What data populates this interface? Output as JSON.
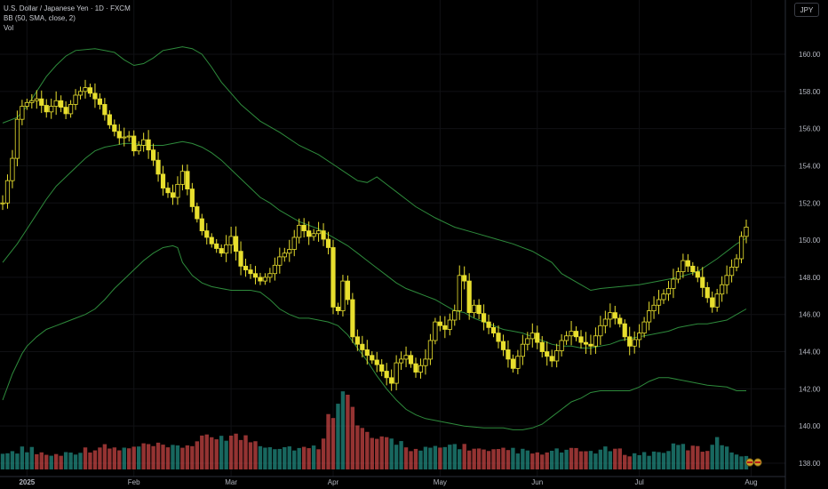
{
  "legend": {
    "symbol_line": "U.S. Dollar / Japanese Yen · 1D · FXCM",
    "bb_line": "BB (50, SMA, close, 2)",
    "vol_line": "Vol"
  },
  "currency_button": "JPY",
  "colors": {
    "background": "#000000",
    "candle_up": "#e8df2e",
    "candle_down": "#e8df2e",
    "bollinger": "#2e8b3c",
    "volume_up": "#26a69a",
    "volume_down": "#ef5350",
    "axis_text": "#b2b5be"
  },
  "chart_data": {
    "type": "candlestick",
    "y_axis": {
      "ticks": [
        138,
        140,
        142,
        144,
        146,
        148,
        150,
        152,
        154,
        156,
        158,
        160
      ],
      "range": [
        137.2,
        162.8
      ],
      "position": "right"
    },
    "x_axis": {
      "labels": [
        {
          "text": "2025",
          "day": 0
        },
        {
          "text": "Feb",
          "day": 22
        },
        {
          "text": "Mar",
          "day": 42
        },
        {
          "text": "Apr",
          "day": 63
        },
        {
          "text": "May",
          "day": 85
        },
        {
          "text": "Jun",
          "day": 105
        },
        {
          "text": "Jul",
          "day": 126
        },
        {
          "text": "Aug",
          "day": 149
        }
      ]
    },
    "price_keypoints": [
      [
        -5,
        152.0
      ],
      [
        -4,
        153.2
      ],
      [
        -3,
        154.4
      ],
      [
        -2,
        156.5
      ],
      [
        -1,
        157.2
      ],
      [
        0,
        157.4
      ],
      [
        2,
        157.6
      ],
      [
        4,
        156.9
      ],
      [
        6,
        157.5
      ],
      [
        8,
        156.8
      ],
      [
        10,
        157.8
      ],
      [
        12,
        158.2
      ],
      [
        15,
        157.3
      ],
      [
        17,
        156.2
      ],
      [
        19,
        155.5
      ],
      [
        21,
        155.6
      ],
      [
        22,
        154.8
      ],
      [
        24,
        155.4
      ],
      [
        26,
        154.3
      ],
      [
        28,
        152.8
      ],
      [
        30,
        152.3
      ],
      [
        32,
        153.7
      ],
      [
        34,
        151.8
      ],
      [
        36,
        150.5
      ],
      [
        38,
        149.8
      ],
      [
        40,
        149.3
      ],
      [
        42,
        150.2
      ],
      [
        44,
        148.6
      ],
      [
        46,
        148.2
      ],
      [
        48,
        147.8
      ],
      [
        50,
        148.2
      ],
      [
        52,
        149.1
      ],
      [
        54,
        149.5
      ],
      [
        56,
        150.8
      ],
      [
        58,
        150.2
      ],
      [
        60,
        150.5
      ],
      [
        62,
        149.6
      ],
      [
        63,
        146.4
      ],
      [
        64,
        146.2
      ],
      [
        65,
        147.8
      ],
      [
        66,
        146.8
      ],
      [
        67,
        144.8
      ],
      [
        68,
        144.4
      ],
      [
        70,
        143.8
      ],
      [
        72,
        143.3
      ],
      [
        74,
        142.6
      ],
      [
        75,
        142.3
      ],
      [
        76,
        143.4
      ],
      [
        78,
        143.8
      ],
      [
        80,
        142.9
      ],
      [
        82,
        143.6
      ],
      [
        84,
        145.6
      ],
      [
        86,
        145.2
      ],
      [
        88,
        146.2
      ],
      [
        89,
        148.1
      ],
      [
        90,
        147.8
      ],
      [
        91,
        146.1
      ],
      [
        92,
        146.5
      ],
      [
        94,
        145.6
      ],
      [
        96,
        145.0
      ],
      [
        98,
        144.1
      ],
      [
        100,
        143.1
      ],
      [
        102,
        144.4
      ],
      [
        104,
        145.0
      ],
      [
        106,
        144.0
      ],
      [
        108,
        143.5
      ],
      [
        110,
        144.6
      ],
      [
        112,
        145.1
      ],
      [
        114,
        144.5
      ],
      [
        116,
        144.3
      ],
      [
        118,
        145.4
      ],
      [
        120,
        146.1
      ],
      [
        122,
        145.5
      ],
      [
        123,
        144.8
      ],
      [
        124,
        144.3
      ],
      [
        126,
        145.0
      ],
      [
        128,
        146.2
      ],
      [
        130,
        146.8
      ],
      [
        132,
        147.4
      ],
      [
        133,
        147.9
      ],
      [
        134,
        148.3
      ],
      [
        135,
        148.9
      ],
      [
        136,
        148.6
      ],
      [
        138,
        148.0
      ],
      [
        140,
        146.9
      ],
      [
        141,
        146.4
      ],
      [
        142,
        147.1
      ],
      [
        144,
        148.1
      ],
      [
        146,
        149.0
      ],
      [
        147,
        150.2
      ],
      [
        148,
        150.7
      ]
    ],
    "bollinger": {
      "upper": [
        [
          -5,
          156.3
        ],
        [
          -2,
          156.6
        ],
        [
          0,
          157.2
        ],
        [
          2,
          158.0
        ],
        [
          4,
          158.8
        ],
        [
          6,
          159.4
        ],
        [
          8,
          159.9
        ],
        [
          10,
          160.2
        ],
        [
          14,
          160.3
        ],
        [
          16,
          160.2
        ],
        [
          18,
          160.1
        ],
        [
          20,
          159.7
        ],
        [
          22,
          159.4
        ],
        [
          24,
          159.5
        ],
        [
          26,
          159.8
        ],
        [
          28,
          160.2
        ],
        [
          30,
          160.3
        ],
        [
          32,
          160.4
        ],
        [
          34,
          160.3
        ],
        [
          36,
          160.0
        ],
        [
          38,
          159.3
        ],
        [
          40,
          158.5
        ],
        [
          44,
          157.3
        ],
        [
          48,
          156.4
        ],
        [
          52,
          155.8
        ],
        [
          56,
          155.1
        ],
        [
          60,
          154.6
        ],
        [
          64,
          153.9
        ],
        [
          68,
          153.2
        ],
        [
          70,
          153.1
        ],
        [
          72,
          153.4
        ],
        [
          74,
          153.0
        ],
        [
          76,
          152.6
        ],
        [
          78,
          152.2
        ],
        [
          80,
          151.8
        ],
        [
          84,
          151.2
        ],
        [
          88,
          150.7
        ],
        [
          92,
          150.4
        ],
        [
          96,
          150.1
        ],
        [
          100,
          149.8
        ],
        [
          104,
          149.4
        ],
        [
          108,
          148.8
        ],
        [
          110,
          148.2
        ],
        [
          114,
          147.6
        ],
        [
          116,
          147.3
        ],
        [
          118,
          147.4
        ],
        [
          122,
          147.5
        ],
        [
          126,
          147.6
        ],
        [
          130,
          147.8
        ],
        [
          134,
          148.0
        ],
        [
          138,
          148.3
        ],
        [
          142,
          149.0
        ],
        [
          146,
          149.8
        ],
        [
          148,
          150.1
        ]
      ],
      "middle": [
        [
          -5,
          148.8
        ],
        [
          -2,
          149.8
        ],
        [
          0,
          150.6
        ],
        [
          2,
          151.4
        ],
        [
          4,
          152.2
        ],
        [
          6,
          152.9
        ],
        [
          8,
          153.4
        ],
        [
          10,
          153.9
        ],
        [
          12,
          154.4
        ],
        [
          14,
          154.8
        ],
        [
          16,
          155.0
        ],
        [
          18,
          155.1
        ],
        [
          20,
          155.2
        ],
        [
          22,
          155.2
        ],
        [
          24,
          155.1
        ],
        [
          26,
          155.1
        ],
        [
          28,
          155.1
        ],
        [
          30,
          155.2
        ],
        [
          32,
          155.3
        ],
        [
          34,
          155.2
        ],
        [
          36,
          155.0
        ],
        [
          38,
          154.7
        ],
        [
          40,
          154.3
        ],
        [
          42,
          153.8
        ],
        [
          44,
          153.3
        ],
        [
          46,
          152.8
        ],
        [
          48,
          152.3
        ],
        [
          50,
          152.0
        ],
        [
          52,
          151.6
        ],
        [
          54,
          151.3
        ],
        [
          56,
          151.0
        ],
        [
          58,
          150.8
        ],
        [
          60,
          150.6
        ],
        [
          62,
          150.3
        ],
        [
          64,
          150.0
        ],
        [
          66,
          149.7
        ],
        [
          68,
          149.3
        ],
        [
          70,
          148.9
        ],
        [
          72,
          148.5
        ],
        [
          74,
          148.1
        ],
        [
          76,
          147.7
        ],
        [
          78,
          147.4
        ],
        [
          80,
          147.2
        ],
        [
          82,
          147.0
        ],
        [
          84,
          146.8
        ],
        [
          86,
          146.5
        ],
        [
          88,
          146.2
        ],
        [
          90,
          146.1
        ],
        [
          92,
          145.8
        ],
        [
          94,
          145.6
        ],
        [
          96,
          145.4
        ],
        [
          98,
          145.2
        ],
        [
          100,
          145.1
        ],
        [
          102,
          145.0
        ],
        [
          104,
          144.8
        ],
        [
          106,
          144.6
        ],
        [
          108,
          144.4
        ],
        [
          110,
          144.3
        ],
        [
          112,
          144.3
        ],
        [
          114,
          144.2
        ],
        [
          116,
          144.2
        ],
        [
          118,
          144.3
        ],
        [
          120,
          144.4
        ],
        [
          122,
          144.6
        ],
        [
          124,
          144.7
        ],
        [
          126,
          144.8
        ],
        [
          128,
          144.9
        ],
        [
          130,
          145.0
        ],
        [
          132,
          145.1
        ],
        [
          134,
          145.3
        ],
        [
          136,
          145.4
        ],
        [
          138,
          145.5
        ],
        [
          140,
          145.5
        ],
        [
          142,
          145.6
        ],
        [
          144,
          145.7
        ],
        [
          146,
          146.0
        ],
        [
          148,
          146.3
        ]
      ],
      "lower": [
        [
          -5,
          141.4
        ],
        [
          -3,
          142.8
        ],
        [
          -1,
          143.9
        ],
        [
          0,
          144.3
        ],
        [
          2,
          144.8
        ],
        [
          4,
          145.2
        ],
        [
          6,
          145.4
        ],
        [
          8,
          145.6
        ],
        [
          10,
          145.8
        ],
        [
          12,
          146.0
        ],
        [
          14,
          146.3
        ],
        [
          16,
          146.8
        ],
        [
          18,
          147.4
        ],
        [
          20,
          147.9
        ],
        [
          22,
          148.4
        ],
        [
          24,
          148.9
        ],
        [
          26,
          149.3
        ],
        [
          28,
          149.6
        ],
        [
          30,
          149.7
        ],
        [
          31,
          149.6
        ],
        [
          32,
          148.8
        ],
        [
          34,
          148.1
        ],
        [
          36,
          147.7
        ],
        [
          38,
          147.5
        ],
        [
          40,
          147.4
        ],
        [
          42,
          147.3
        ],
        [
          44,
          147.3
        ],
        [
          46,
          147.3
        ],
        [
          48,
          147.2
        ],
        [
          50,
          146.8
        ],
        [
          52,
          146.3
        ],
        [
          54,
          146.0
        ],
        [
          56,
          145.8
        ],
        [
          58,
          145.8
        ],
        [
          60,
          145.7
        ],
        [
          62,
          145.6
        ],
        [
          64,
          145.4
        ],
        [
          66,
          144.9
        ],
        [
          68,
          144.2
        ],
        [
          70,
          143.5
        ],
        [
          72,
          142.7
        ],
        [
          74,
          142.0
        ],
        [
          76,
          141.4
        ],
        [
          78,
          140.9
        ],
        [
          80,
          140.6
        ],
        [
          82,
          140.4
        ],
        [
          84,
          140.3
        ],
        [
          86,
          140.2
        ],
        [
          88,
          140.1
        ],
        [
          90,
          140.0
        ],
        [
          94,
          139.9
        ],
        [
          98,
          139.9
        ],
        [
          100,
          139.8
        ],
        [
          102,
          139.8
        ],
        [
          104,
          139.9
        ],
        [
          106,
          140.1
        ],
        [
          108,
          140.5
        ],
        [
          110,
          140.9
        ],
        [
          112,
          141.3
        ],
        [
          114,
          141.5
        ],
        [
          116,
          141.8
        ],
        [
          118,
          141.9
        ],
        [
          120,
          141.9
        ],
        [
          124,
          141.9
        ],
        [
          126,
          142.1
        ],
        [
          128,
          142.4
        ],
        [
          130,
          142.6
        ],
        [
          132,
          142.6
        ],
        [
          136,
          142.4
        ],
        [
          140,
          142.2
        ],
        [
          144,
          142.1
        ],
        [
          146,
          141.9
        ],
        [
          148,
          141.9
        ]
      ]
    },
    "volume_keypoints": [
      [
        -5,
        0.32
      ],
      [
        0,
        0.42
      ],
      [
        5,
        0.28
      ],
      [
        10,
        0.36
      ],
      [
        15,
        0.45
      ],
      [
        20,
        0.4
      ],
      [
        25,
        0.48
      ],
      [
        30,
        0.42
      ],
      [
        35,
        0.55
      ],
      [
        40,
        0.7
      ],
      [
        45,
        0.62
      ],
      [
        50,
        0.48
      ],
      [
        55,
        0.44
      ],
      [
        58,
        0.4
      ],
      [
        60,
        0.46
      ],
      [
        62,
        1.0
      ],
      [
        63,
        1.25
      ],
      [
        64,
        1.55
      ],
      [
        65,
        1.85
      ],
      [
        66,
        1.45
      ],
      [
        67,
        1.15
      ],
      [
        68,
        0.85
      ],
      [
        70,
        0.72
      ],
      [
        72,
        0.55
      ],
      [
        75,
        0.6
      ],
      [
        78,
        0.5
      ],
      [
        80,
        0.38
      ],
      [
        85,
        0.42
      ],
      [
        88,
        0.5
      ],
      [
        90,
        0.46
      ],
      [
        95,
        0.34
      ],
      [
        100,
        0.4
      ],
      [
        105,
        0.3
      ],
      [
        110,
        0.38
      ],
      [
        115,
        0.36
      ],
      [
        120,
        0.4
      ],
      [
        125,
        0.3
      ],
      [
        130,
        0.34
      ],
      [
        134,
        0.48
      ],
      [
        136,
        0.44
      ],
      [
        138,
        0.42
      ],
      [
        140,
        0.38
      ],
      [
        142,
        0.72
      ],
      [
        144,
        0.4
      ],
      [
        146,
        0.34
      ],
      [
        148,
        0.28
      ]
    ]
  }
}
